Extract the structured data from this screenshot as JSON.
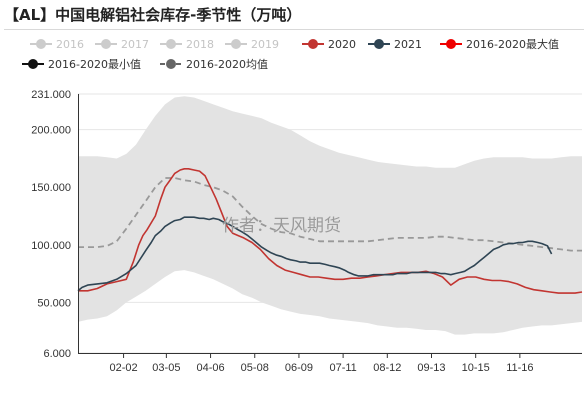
{
  "title": "【AL】中国电解铝社会库存-季节性（万吨）",
  "watermark": "作者：天风期货",
  "legend": [
    {
      "label": "2016",
      "color": "#cccccc",
      "dimmed": true,
      "dashed": false
    },
    {
      "label": "2017",
      "color": "#cccccc",
      "dimmed": true,
      "dashed": false
    },
    {
      "label": "2018",
      "color": "#cccccc",
      "dimmed": true,
      "dashed": false
    },
    {
      "label": "2019",
      "color": "#cccccc",
      "dimmed": true,
      "dashed": false
    },
    {
      "label": "2020",
      "color": "#c23531",
      "dimmed": false,
      "dashed": false
    },
    {
      "label": "2021",
      "color": "#2f4554",
      "dimmed": false,
      "dashed": false
    },
    {
      "label": "2016-2020最大值",
      "color": "#ee0000",
      "dimmed": false,
      "dashed": false
    },
    {
      "label": "2016-2020最小值",
      "color": "#111111",
      "dimmed": false,
      "dashed": false
    },
    {
      "label": "2016-2020均值",
      "color": "#666666",
      "dimmed": false,
      "dashed": true
    }
  ],
  "chart_data": {
    "type": "line",
    "title": "【AL】中国电解铝社会库存-季节性（万吨）",
    "xlabel": "",
    "ylabel": "",
    "ylim": [
      6.0,
      231.0
    ],
    "y_ticks": [
      "231.000",
      "200.000",
      "150.000",
      "100.000",
      "50.000",
      "6.000"
    ],
    "x_tick_labels": [
      "02-02",
      "03-05",
      "04-06",
      "05-08",
      "06-09",
      "07-11",
      "08-12",
      "09-13",
      "10-15",
      "11-16"
    ],
    "x_tick_days": [
      33,
      64,
      96,
      128,
      160,
      192,
      224,
      256,
      288,
      320
    ],
    "x_range_days": [
      0,
      365
    ],
    "grid": true,
    "legend_position": "top",
    "band_max": {
      "name": "2016-2020最大值",
      "x": [
        0,
        7,
        14,
        21,
        28,
        35,
        42,
        49,
        56,
        63,
        70,
        77,
        84,
        91,
        98,
        105,
        112,
        119,
        126,
        133,
        140,
        147,
        154,
        161,
        168,
        175,
        182,
        189,
        196,
        203,
        210,
        217,
        224,
        231,
        238,
        245,
        252,
        259,
        266,
        273,
        280,
        287,
        294,
        301,
        308,
        315,
        322,
        329,
        336,
        343,
        350,
        357,
        365
      ],
      "values": [
        177,
        177,
        177,
        176,
        175,
        179,
        187,
        200,
        212,
        222,
        228,
        229,
        228,
        225,
        222,
        219,
        216,
        214,
        212,
        210,
        206,
        203,
        200,
        195,
        190,
        186,
        183,
        180,
        178,
        176,
        174,
        172,
        171,
        170,
        169,
        168,
        168,
        167,
        167,
        167,
        170,
        173,
        175,
        176,
        176,
        176,
        176,
        175,
        175,
        175,
        176,
        177,
        177
      ]
    },
    "band_min": {
      "name": "2016-2020最小值",
      "x": [
        0,
        7,
        14,
        21,
        28,
        35,
        42,
        49,
        56,
        63,
        70,
        77,
        84,
        91,
        98,
        105,
        112,
        119,
        126,
        133,
        140,
        147,
        154,
        161,
        168,
        175,
        182,
        189,
        196,
        203,
        210,
        217,
        224,
        231,
        238,
        245,
        252,
        259,
        266,
        273,
        280,
        287,
        294,
        301,
        308,
        315,
        322,
        329,
        336,
        343,
        350,
        357,
        365
      ],
      "values": [
        33,
        35,
        36,
        38,
        43,
        50,
        55,
        60,
        66,
        72,
        77,
        78,
        76,
        73,
        70,
        66,
        62,
        57,
        54,
        50,
        47,
        44,
        42,
        40,
        39,
        38,
        36,
        35,
        34,
        33,
        32,
        30,
        29,
        28,
        28,
        27,
        26,
        26,
        25,
        22,
        22,
        23,
        23,
        23,
        24,
        26,
        28,
        29,
        30,
        30,
        31,
        32,
        33
      ]
    },
    "series": [
      {
        "name": "2016-2020均值",
        "color": "#999999",
        "dashed": true,
        "x": [
          0,
          7,
          14,
          21,
          28,
          35,
          42,
          49,
          56,
          63,
          70,
          77,
          84,
          91,
          98,
          105,
          112,
          119,
          126,
          133,
          140,
          147,
          154,
          161,
          168,
          175,
          182,
          189,
          196,
          203,
          210,
          217,
          224,
          231,
          238,
          245,
          252,
          259,
          266,
          273,
          280,
          287,
          294,
          301,
          308,
          315,
          322,
          329,
          336,
          343,
          350,
          357,
          365
        ],
        "values": [
          98,
          98,
          98,
          99,
          103,
          114,
          126,
          138,
          150,
          158,
          158,
          156,
          155,
          152,
          150,
          147,
          142,
          133,
          125,
          118,
          114,
          111,
          110,
          107,
          105,
          103,
          103,
          103,
          103,
          103,
          103,
          104,
          105,
          106,
          106,
          106,
          106,
          107,
          107,
          106,
          105,
          104,
          104,
          103,
          102,
          101,
          100,
          99,
          98,
          97,
          96,
          95,
          95
        ]
      },
      {
        "name": "2020",
        "color": "#c23531",
        "dashed": false,
        "x": [
          0,
          7,
          14,
          21,
          28,
          35,
          40,
          44,
          47,
          50,
          56,
          60,
          63,
          66,
          70,
          74,
          77,
          80,
          84,
          88,
          92,
          96,
          100,
          104,
          108,
          112,
          116,
          120,
          126,
          132,
          138,
          144,
          150,
          156,
          162,
          168,
          174,
          180,
          186,
          192,
          198,
          204,
          210,
          216,
          222,
          228,
          234,
          240,
          246,
          252,
          258,
          264,
          270,
          276,
          282,
          288,
          294,
          300,
          306,
          312,
          318,
          324,
          330,
          336,
          342,
          348,
          354,
          360,
          365
        ],
        "values": [
          60,
          60,
          62,
          66,
          68,
          70,
          85,
          100,
          108,
          113,
          125,
          140,
          150,
          155,
          162,
          165,
          166,
          166,
          165,
          164,
          160,
          150,
          140,
          128,
          116,
          110,
          108,
          106,
          102,
          96,
          88,
          82,
          78,
          76,
          74,
          72,
          72,
          71,
          70,
          70,
          71,
          71,
          72,
          73,
          74,
          75,
          76,
          76,
          76,
          77,
          75,
          72,
          65,
          70,
          72,
          72,
          70,
          69,
          69,
          68,
          66,
          63,
          61,
          60,
          59,
          58,
          58,
          58,
          59
        ]
      },
      {
        "name": "2021",
        "color": "#2f4554",
        "dashed": false,
        "x": [
          0,
          3,
          7,
          14,
          21,
          28,
          35,
          42,
          49,
          53,
          56,
          60,
          63,
          67,
          70,
          74,
          77,
          81,
          84,
          88,
          91,
          95,
          98,
          102,
          105,
          109,
          112,
          116,
          119,
          123,
          126,
          130,
          133,
          137,
          140,
          144,
          147,
          151,
          154,
          158,
          161,
          165,
          168,
          172,
          175,
          179,
          182,
          186,
          189,
          193,
          196,
          200,
          203,
          207,
          210,
          214,
          217,
          221,
          224,
          228,
          231,
          235,
          238,
          242,
          245,
          249,
          252,
          256,
          259,
          263,
          266,
          270,
          273,
          277,
          280,
          284,
          287,
          291,
          294,
          298,
          301,
          305,
          308,
          312,
          315,
          319,
          322,
          326,
          329,
          333,
          336,
          340,
          343
        ],
        "values": [
          60,
          63,
          65,
          66,
          67,
          70,
          75,
          82,
          95,
          102,
          108,
          112,
          116,
          119,
          121,
          122,
          124,
          124,
          124,
          123,
          123,
          122,
          123,
          122,
          120,
          118,
          116,
          113,
          111,
          108,
          105,
          101,
          98,
          95,
          93,
          91,
          90,
          88,
          87,
          86,
          85,
          85,
          84,
          84,
          84,
          83,
          82,
          81,
          80,
          78,
          76,
          74,
          73,
          73,
          73,
          74,
          74,
          74,
          74,
          74,
          75,
          75,
          75,
          76,
          76,
          76,
          76,
          76,
          76,
          75,
          75,
          74,
          75,
          76,
          77,
          80,
          82,
          86,
          89,
          93,
          96,
          98,
          100,
          101,
          101,
          102,
          102,
          103,
          103,
          102,
          101,
          99,
          92
        ]
      }
    ]
  }
}
